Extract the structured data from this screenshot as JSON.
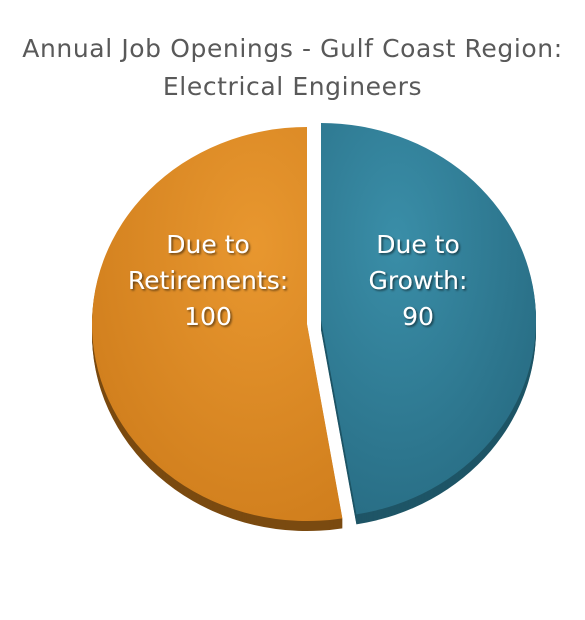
{
  "chart_data": {
    "type": "pie",
    "title": [
      "Annual Job Openings - Gulf Coast Region:",
      "Electrical Engineers"
    ],
    "slices": [
      {
        "label_lines": [
          "Due to",
          "Growth:",
          "90"
        ],
        "value": 90,
        "color": "#31809a"
      },
      {
        "label_lines": [
          "Due to",
          "Retirements:",
          "100"
        ],
        "value": 100,
        "color": "#de8b25"
      }
    ],
    "legend": "none"
  }
}
